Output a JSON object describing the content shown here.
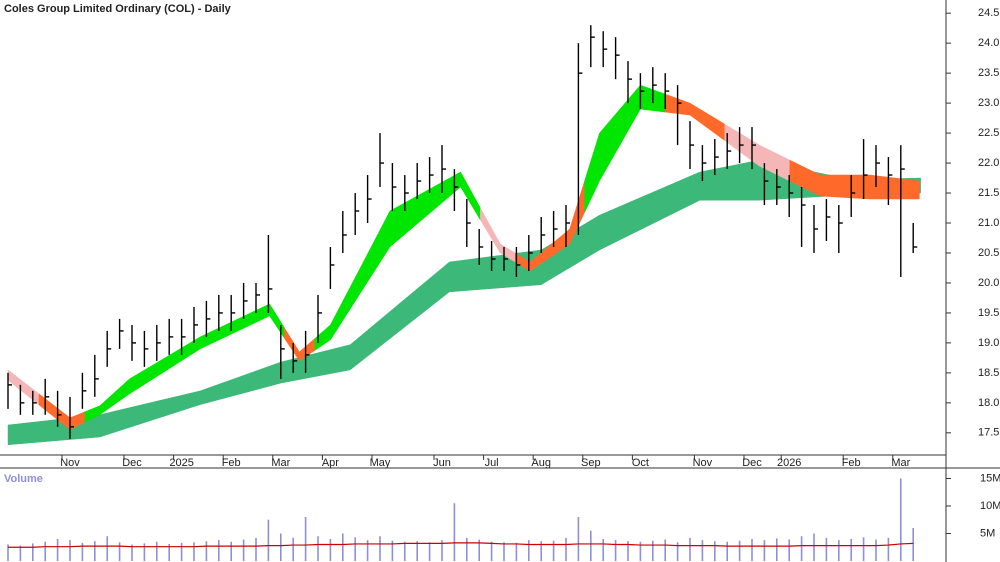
{
  "chart_data": {
    "type": "ohlc",
    "title": "Coles Group Limited Ordinary (COL) - Daily",
    "categories": [
      null,
      null,
      null,
      null,
      null,
      "Nov",
      null,
      null,
      null,
      null,
      "Dec",
      null,
      null,
      null,
      "2025",
      null,
      null,
      null,
      "Feb",
      null,
      null,
      null,
      "Mar",
      null,
      null,
      null,
      "Apr",
      null,
      null,
      null,
      "May",
      null,
      null,
      null,
      null,
      "Jun",
      null,
      null,
      null,
      "Jul",
      null,
      null,
      null,
      "Aug",
      null,
      null,
      null,
      "Sep",
      null,
      null,
      null,
      "Oct",
      null,
      null,
      null,
      null,
      "Nov",
      null,
      null,
      null,
      "Dec",
      null,
      null,
      "2026",
      null,
      null,
      null,
      null,
      "Feb",
      null,
      null,
      null,
      "Mar",
      null
    ],
    "high": [
      18.5,
      18.3,
      18.2,
      18.4,
      18.2,
      18.1,
      18.5,
      18.8,
      19.2,
      19.4,
      19.3,
      19.2,
      19.3,
      19.4,
      19.4,
      19.6,
      19.7,
      19.8,
      19.8,
      20.0,
      20.0,
      20.8,
      19.3,
      19.0,
      19.2,
      19.8,
      20.6,
      21.2,
      21.5,
      21.8,
      22.5,
      22.0,
      21.8,
      22.0,
      22.1,
      22.3,
      21.9,
      21.4,
      20.9,
      20.7,
      20.6,
      20.6,
      20.8,
      21.1,
      21.2,
      21.3,
      24.0,
      24.3,
      24.2,
      24.1,
      23.7,
      23.5,
      23.6,
      23.5,
      23.3,
      22.7,
      22.3,
      22.4,
      22.5,
      22.6,
      22.6,
      22.0,
      21.9,
      21.8,
      21.6,
      21.3,
      21.4,
      21.3,
      21.8,
      22.4,
      22.3,
      22.1,
      22.3,
      21.0
    ],
    "low": [
      17.9,
      17.8,
      17.8,
      17.8,
      17.6,
      17.4,
      17.9,
      18.1,
      18.6,
      18.9,
      18.7,
      18.6,
      18.7,
      18.8,
      18.8,
      19.0,
      19.1,
      19.2,
      19.2,
      19.4,
      19.5,
      19.5,
      18.4,
      18.5,
      18.5,
      19.0,
      19.9,
      20.5,
      20.8,
      21.0,
      21.6,
      21.2,
      21.2,
      21.4,
      21.5,
      21.5,
      21.2,
      20.6,
      20.3,
      20.2,
      20.2,
      20.1,
      20.2,
      20.5,
      20.6,
      20.6,
      20.8,
      23.6,
      23.6,
      23.4,
      23.0,
      22.9,
      23.0,
      22.9,
      22.3,
      21.9,
      21.7,
      21.8,
      21.9,
      22.0,
      21.9,
      21.3,
      21.3,
      21.1,
      20.6,
      20.5,
      20.7,
      20.5,
      21.1,
      21.4,
      21.6,
      21.3,
      20.1,
      20.5
    ],
    "close": [
      18.3,
      18.0,
      18.0,
      18.1,
      17.8,
      17.6,
      18.2,
      18.4,
      18.9,
      19.2,
      19.0,
      18.9,
      19.0,
      19.1,
      19.1,
      19.3,
      19.4,
      19.5,
      19.5,
      19.7,
      19.8,
      19.9,
      18.9,
      18.7,
      18.8,
      19.5,
      20.3,
      20.8,
      21.2,
      21.4,
      22.0,
      21.6,
      21.5,
      21.7,
      21.8,
      21.9,
      21.6,
      21.0,
      20.6,
      20.4,
      20.4,
      20.3,
      20.5,
      20.8,
      20.9,
      21.0,
      23.5,
      24.1,
      23.9,
      23.8,
      23.4,
      23.2,
      23.3,
      23.2,
      23.0,
      22.3,
      22.0,
      22.1,
      22.2,
      22.3,
      22.3,
      21.7,
      21.6,
      21.5,
      21.3,
      20.9,
      21.1,
      21.0,
      21.5,
      21.8,
      22.0,
      21.8,
      21.9,
      20.6
    ],
    "bar_color": "#000000",
    "long_band": {
      "color": "#3cb878",
      "x": [
        0,
        7.4,
        15.5,
        22,
        27.6,
        35.6,
        43,
        47.7,
        55.8,
        60.6,
        68,
        73.6
      ],
      "upper": [
        17.63,
        17.8,
        18.2,
        18.68,
        18.97,
        20.35,
        20.55,
        21.13,
        21.85,
        22.05,
        21.72,
        21.75
      ],
      "lower": [
        17.3,
        17.43,
        17.97,
        18.33,
        18.55,
        19.85,
        19.97,
        20.55,
        21.38,
        21.38,
        21.47,
        21.5
      ]
    },
    "short_band": {
      "x": [
        0,
        5,
        7.4,
        9.8,
        15.5,
        21.1,
        23.5,
        26,
        30.8,
        36.5,
        39.7,
        42.1,
        45.3,
        47.7,
        51,
        55,
        60.6,
        65.5,
        69.5,
        73.5
      ],
      "upper": [
        18.55,
        17.75,
        17.95,
        18.4,
        19.1,
        19.65,
        18.85,
        19.3,
        21.2,
        21.85,
        20.65,
        20.35,
        20.9,
        22.5,
        23.3,
        23.0,
        22.3,
        21.8,
        21.8,
        21.7
      ],
      "lower": [
        18.38,
        17.55,
        17.8,
        18.15,
        18.9,
        19.45,
        18.7,
        19.05,
        20.6,
        21.6,
        20.5,
        20.2,
        20.65,
        21.7,
        22.9,
        22.8,
        21.95,
        21.45,
        21.4,
        21.4
      ],
      "colors": [
        "#f4b6b6",
        "#ff6a2a",
        "#00e600",
        "#00e600",
        "#00e600",
        "#00e600",
        "#ff6a2a",
        "#00e600",
        "#00e600",
        "#00e600",
        "#f4b6b6",
        "#ff6a2a",
        "#ff6a2a",
        "#00e600",
        "#00e600",
        "#ff6a2a",
        "#f4b6b6",
        "#ff6a2a",
        "#ff6a2a",
        "#ff6a2a"
      ]
    },
    "ylim": [
      17.13,
      24.72
    ],
    "yticks": [
      17.5,
      {
        "value": 18,
        "label": "18.0"
      },
      18.5,
      {
        "value": 19,
        "label": "19.0"
      },
      19.5,
      {
        "value": 20,
        "label": "20.0"
      },
      20.5,
      {
        "value": 21,
        "label": "21.0"
      },
      21.5,
      {
        "value": 22,
        "label": "22.0"
      },
      22.5,
      {
        "value": 23,
        "label": "23.0"
      },
      23.5,
      {
        "value": 24,
        "label": "24.0"
      },
      24.5
    ],
    "volume": {
      "label": "Volume",
      "color": "#8f8fd8",
      "ma_color": "#cc0000",
      "values": [
        3000000,
        2800000,
        3200000,
        3500000,
        4000000,
        3800000,
        3300000,
        3600000,
        4500000,
        3400000,
        3000000,
        3200000,
        3500000,
        3100000,
        3300000,
        3400000,
        3600000,
        3800000,
        3500000,
        3900000,
        4200000,
        7500000,
        5000000,
        4200000,
        8000000,
        4500000,
        4000000,
        5000000,
        4300000,
        3800000,
        4500000,
        3700000,
        3500000,
        3600000,
        3400000,
        3800000,
        10500000,
        4200000,
        3900000,
        3500000,
        3400000,
        3300000,
        3800000,
        3600000,
        3700000,
        4200000,
        8000000,
        5500000,
        4000000,
        3800000,
        3600000,
        3500000,
        3700000,
        3900000,
        3400000,
        4200000,
        3800000,
        3600000,
        3500000,
        3700000,
        4000000,
        3800000,
        4100000,
        3900000,
        4500000,
        5000000,
        4200000,
        3800000,
        4000000,
        4300000,
        3900000,
        4200000,
        15000000,
        6000000
      ],
      "ma": [
        2500000,
        2500000,
        2500000,
        2600000,
        2600000,
        2600000,
        2700000,
        2700000,
        2700000,
        2700000,
        2600000,
        2600000,
        2600000,
        2600000,
        2600000,
        2600000,
        2700000,
        2700000,
        2700000,
        2700000,
        2700000,
        2800000,
        2800000,
        2900000,
        2900000,
        3000000,
        3000000,
        3000000,
        3100000,
        3100000,
        3100000,
        3100000,
        3200000,
        3200000,
        3200000,
        3200000,
        3300000,
        3300000,
        3300000,
        3200000,
        3100000,
        3100000,
        3000000,
        3000000,
        3000000,
        3000000,
        3100000,
        3100000,
        3100000,
        3000000,
        3000000,
        2900000,
        2900000,
        2900000,
        2800000,
        2800000,
        2800000,
        2800000,
        2700000,
        2700000,
        2700000,
        2700000,
        2700000,
        2700000,
        2800000,
        2800000,
        2800000,
        2800000,
        2800000,
        2800000,
        2800000,
        2900000,
        3100000,
        3200000
      ],
      "ylim": [
        0,
        16900000
      ],
      "yticks": [
        {
          "value": 5000000,
          "label": "5M"
        },
        {
          "value": 10000000,
          "label": "10M"
        },
        {
          "value": 15000000,
          "label": "15M"
        }
      ]
    }
  }
}
